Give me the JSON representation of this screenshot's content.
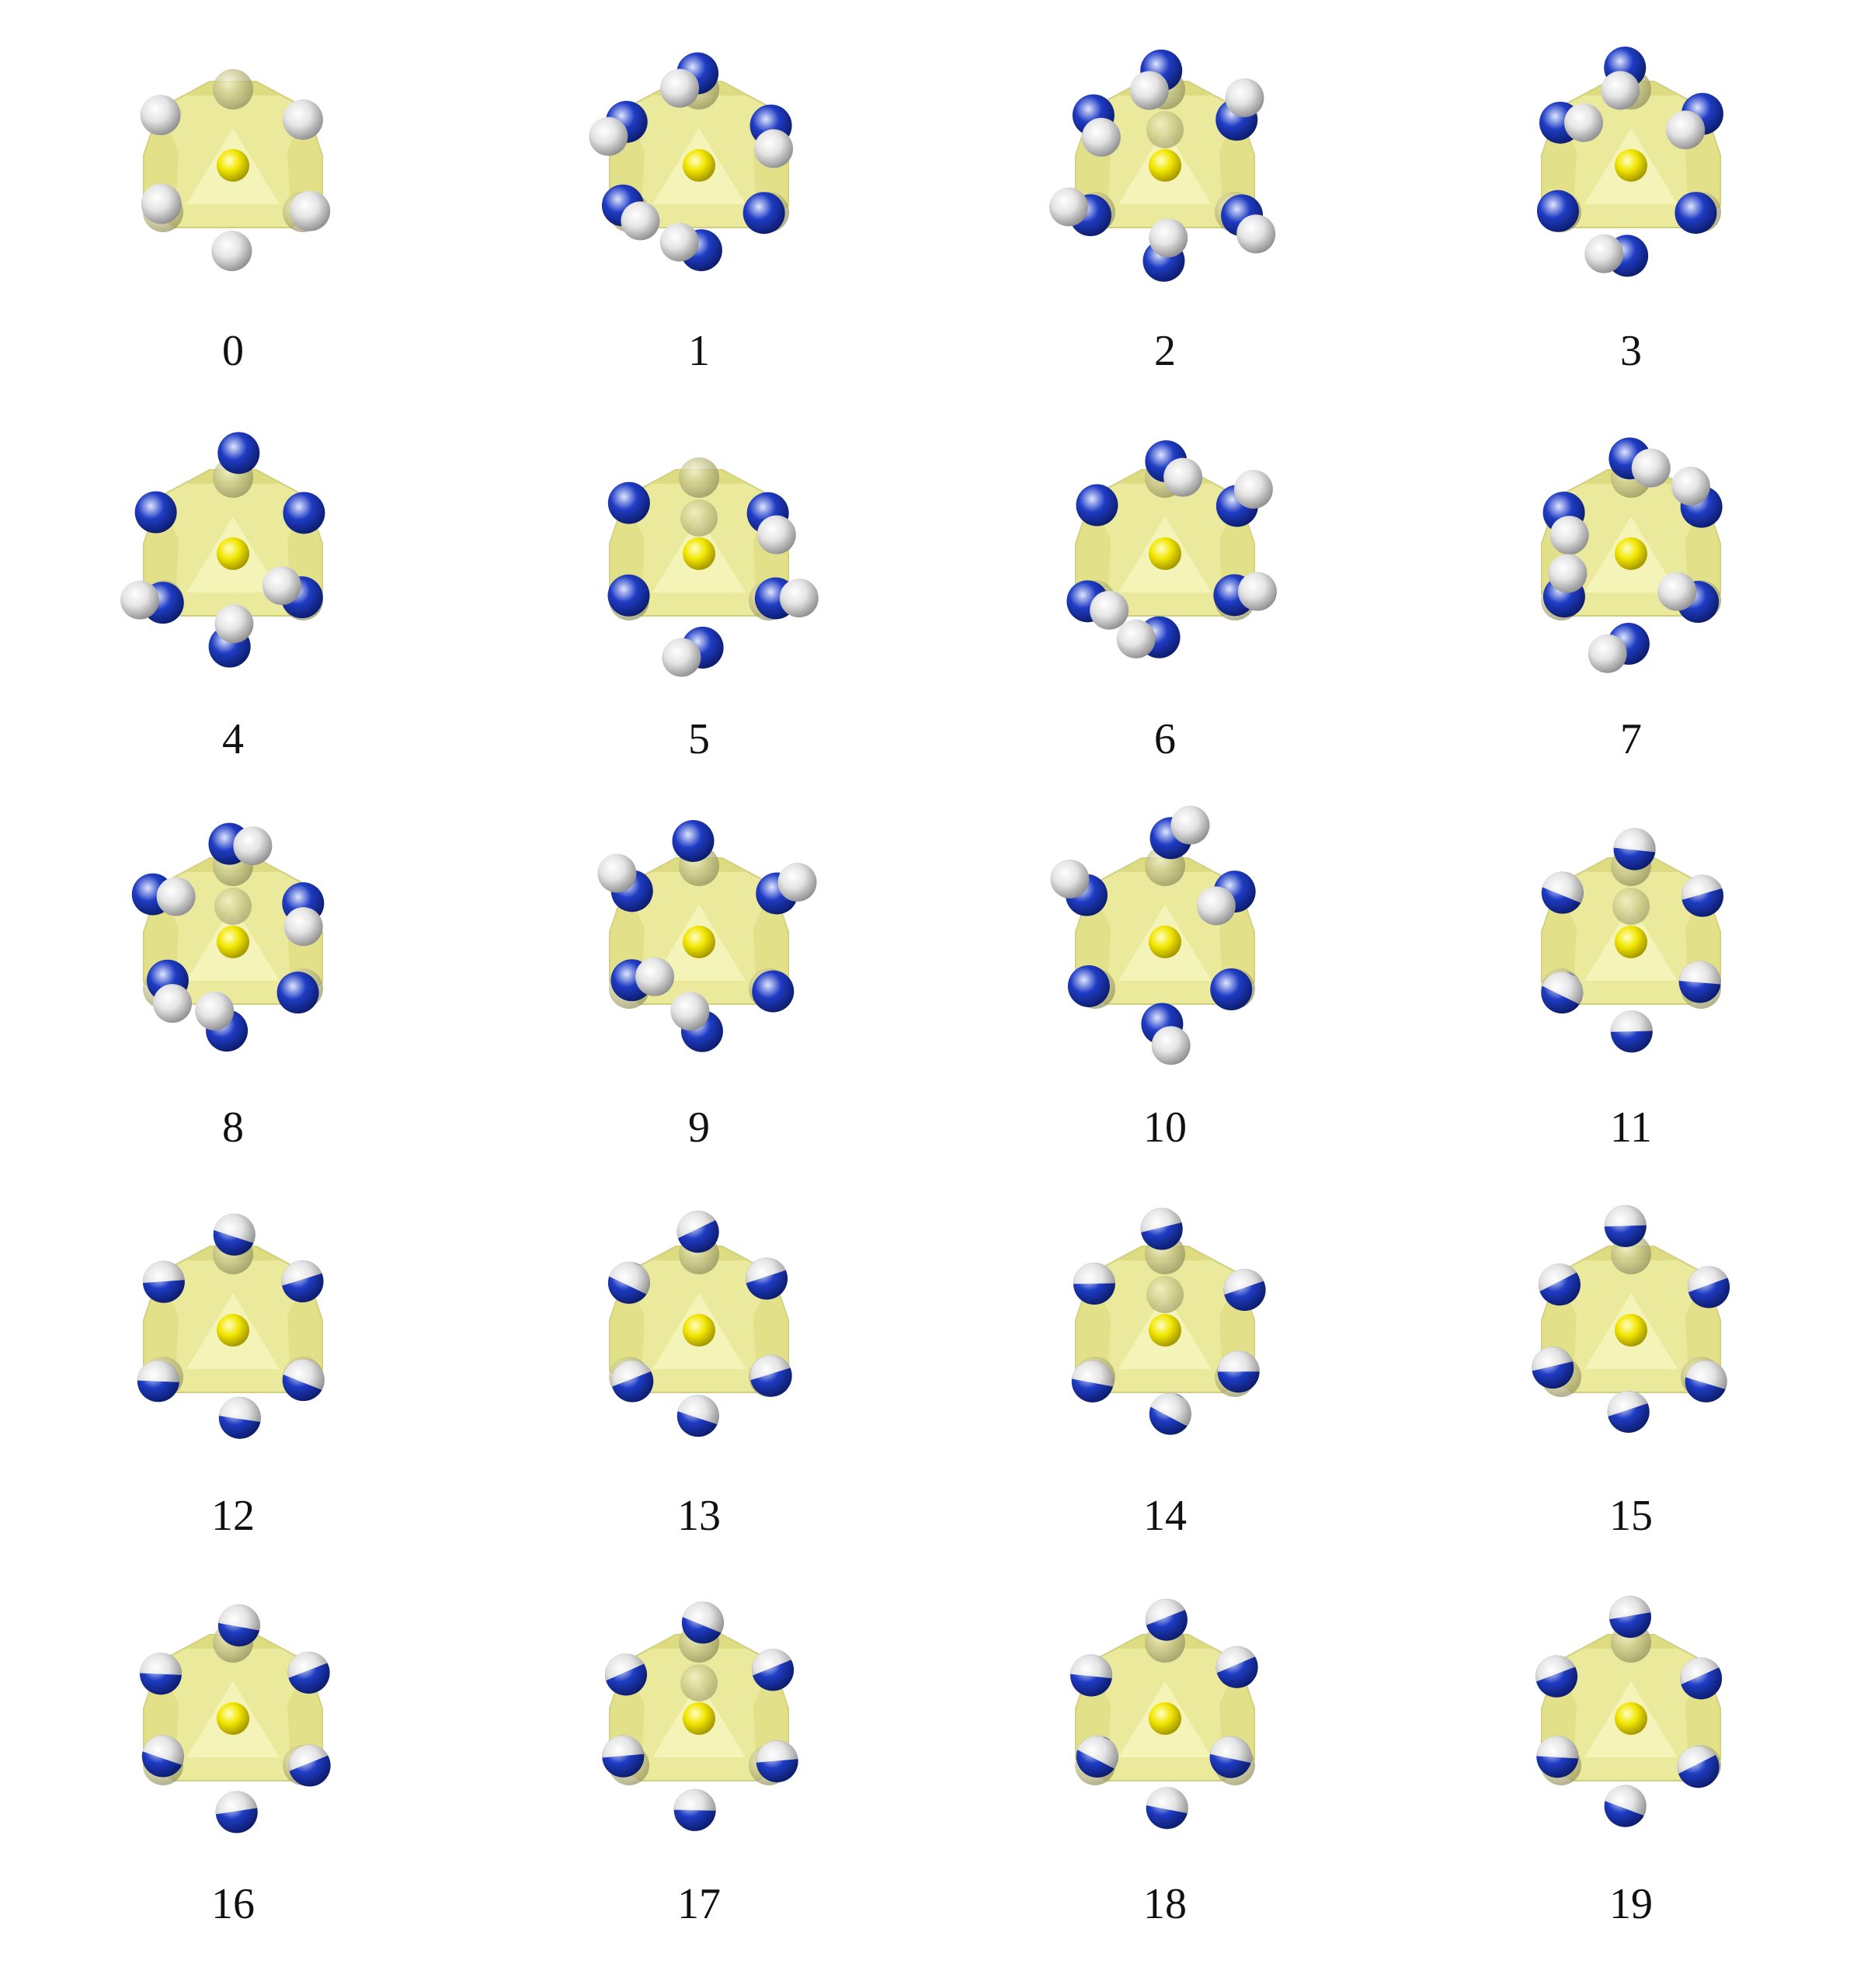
{
  "colors": {
    "cage_fill": "#e8e68a",
    "cage_edge": "#c9c66a",
    "center_atom": "#f2e600",
    "nitrogen_atom": "#1f3cc4",
    "hydrogen_atom": "#e4e4e4"
  },
  "structures": [
    {
      "label": "0",
      "variant": 0
    },
    {
      "label": "1",
      "variant": 1
    },
    {
      "label": "2",
      "variant": 2
    },
    {
      "label": "3",
      "variant": 3
    },
    {
      "label": "4",
      "variant": 4
    },
    {
      "label": "5",
      "variant": 5
    },
    {
      "label": "6",
      "variant": 6
    },
    {
      "label": "7",
      "variant": 7
    },
    {
      "label": "8",
      "variant": 8
    },
    {
      "label": "9",
      "variant": 9
    },
    {
      "label": "10",
      "variant": 10
    },
    {
      "label": "11",
      "variant": 11
    },
    {
      "label": "12",
      "variant": 12
    },
    {
      "label": "13",
      "variant": 13
    },
    {
      "label": "14",
      "variant": 14
    },
    {
      "label": "15",
      "variant": 15
    },
    {
      "label": "16",
      "variant": 16
    },
    {
      "label": "17",
      "variant": 17
    },
    {
      "label": "18",
      "variant": 18
    },
    {
      "label": "19",
      "variant": 19
    }
  ]
}
